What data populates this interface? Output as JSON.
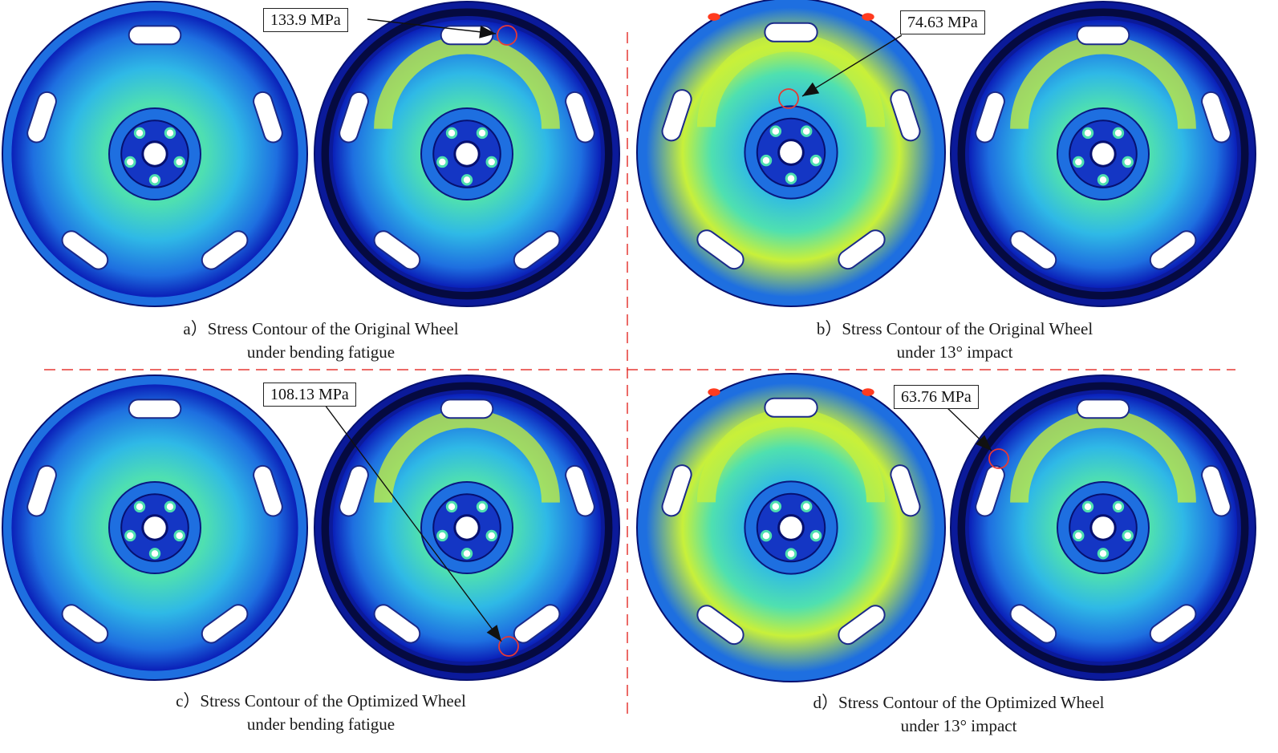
{
  "panels": [
    {
      "id": "a",
      "caption_line1": "a）Stress Contour of the Original Wheel",
      "caption_line2": "under bending fatigue",
      "callout": "133.9 MPa"
    },
    {
      "id": "b",
      "caption_line1": "b）Stress Contour of the Original Wheel",
      "caption_line2": "under 13° impact",
      "callout": "74.63 MPa"
    },
    {
      "id": "c",
      "caption_line1": "c）Stress Contour of the Optimized Wheel",
      "caption_line2": "under bending fatigue",
      "callout": "108.13 MPa"
    },
    {
      "id": "d",
      "caption_line1": "d）Stress Contour of the Optimized Wheel",
      "caption_line2": "under 13° impact",
      "callout": "63.76 MPa"
    }
  ],
  "colors": {
    "divider": "#e53935",
    "low": "#0a1fb8",
    "mid_low": "#1e6fe0",
    "mid": "#2fb9e6",
    "mid_high": "#4fe0b0",
    "high": "#c8f03a",
    "peak": "#ff3b1f",
    "marker": "#e53935"
  }
}
